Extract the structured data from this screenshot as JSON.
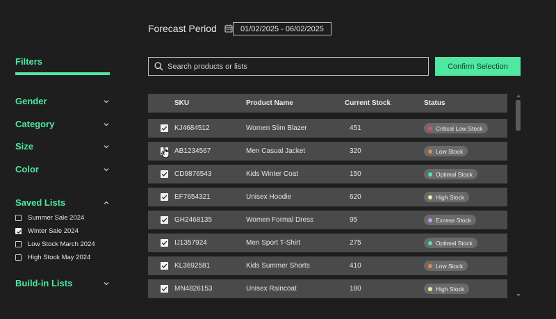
{
  "header": {
    "forecast_label": "Forecast Period",
    "date_range": "01/02/2025 - 06/02/2025",
    "calendar_icon": "calendar-icon"
  },
  "sidebar": {
    "title": "Filters",
    "filters": [
      {
        "label": "Gender",
        "expanded": false
      },
      {
        "label": "Category",
        "expanded": false
      },
      {
        "label": "Size",
        "expanded": false
      },
      {
        "label": "Color",
        "expanded": false
      }
    ],
    "saved_lists": {
      "label": "Saved Lists",
      "expanded": true,
      "items": [
        {
          "label": "Summer Sale 2024",
          "checked": false
        },
        {
          "label": "Winter Sale 2024",
          "checked": true
        },
        {
          "label": "Low Stock March 2024",
          "checked": false
        },
        {
          "label": "High Stock May 2024",
          "checked": false
        }
      ]
    },
    "buildin_lists": {
      "label": "Build-in Lists",
      "expanded": false
    }
  },
  "search": {
    "placeholder": "Search products or lists",
    "value": ""
  },
  "confirm_button": "Confirm Selection",
  "table": {
    "columns": [
      "SKU",
      "Product Name",
      "Current Stock",
      "Status"
    ],
    "rows": [
      {
        "sku": "KJ4684512",
        "name": "Women Slim Blazer",
        "stock": "451",
        "status": "Critical Low Stock",
        "status_color": "#e0505a",
        "checked": true
      },
      {
        "sku": "AB1234567",
        "name": "Men Casual Jacket",
        "stock": "320",
        "status": "Low Stock",
        "status_color": "#e08a50",
        "checked": true
      },
      {
        "sku": "CD9876543",
        "name": "Kids Winter Coat",
        "stock": "150",
        "status": "Optimal Stock",
        "status_color": "#4ee8a0",
        "checked": true
      },
      {
        "sku": "EF7654321",
        "name": "Unisex Hoodie",
        "stock": "620",
        "status": "High Stock",
        "status_color": "#f5e6a0",
        "checked": true
      },
      {
        "sku": "GH2468135",
        "name": "Women Formal Dress",
        "stock": "95",
        "status": "Excess Stock",
        "status_color": "#c79af0",
        "checked": true
      },
      {
        "sku": "IJ1357924",
        "name": "Men Sport T-Shirt",
        "stock": "275",
        "status": "Optimal Stock",
        "status_color": "#4ee8a0",
        "checked": true
      },
      {
        "sku": "KL3692581",
        "name": "Kids Summer Shorts",
        "stock": "410",
        "status": "Low Stock",
        "status_color": "#e08a50",
        "checked": true
      },
      {
        "sku": "MN4826153",
        "name": "Unisex Raincoat",
        "stock": "180",
        "status": "High Stock",
        "status_color": "#f5e6a0",
        "checked": true
      }
    ]
  },
  "colors": {
    "accent": "#4ee8a0",
    "background": "#1e1e1e",
    "row": "#4a4a4a"
  }
}
